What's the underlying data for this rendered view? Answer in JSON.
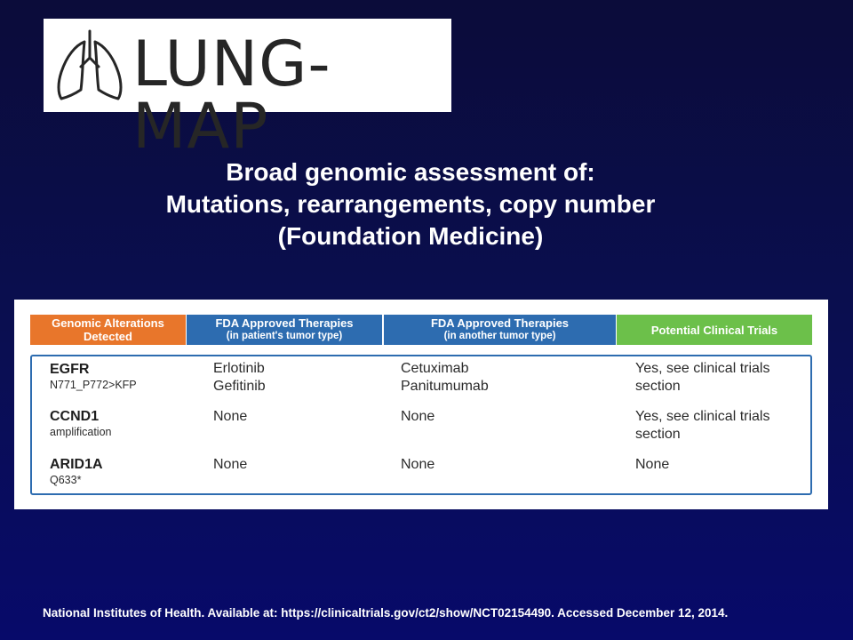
{
  "logo": {
    "text": "LUNG-MAP",
    "icon": "lungs-icon"
  },
  "title_lines": [
    "Broad genomic assessment of:",
    "Mutations, rearrangements, copy number",
    "(Foundation Medicine)"
  ],
  "table": {
    "headers": [
      {
        "main": "Genomic Alterations",
        "sub": "Detected",
        "color": "#e8762b"
      },
      {
        "main": "FDA Approved Therapies",
        "sub": "(in patient's tumor type)",
        "color": "#2d6cb0"
      },
      {
        "main": "FDA Approved Therapies",
        "sub": "(in another tumor type)",
        "color": "#2d6cb0"
      },
      {
        "main": "Potential Clinical Trials",
        "sub": "",
        "color": "#6cc04a"
      }
    ],
    "rows": [
      {
        "gene": "EGFR",
        "variant": "N771_P772>KFP",
        "patient_therapies": [
          "Erlotinib",
          "Gefitinib"
        ],
        "other_therapies": [
          "Cetuximab",
          "Panitumumab"
        ],
        "trials": [
          "Yes, see clinical trials",
          "section"
        ]
      },
      {
        "gene": "CCND1",
        "variant": "amplification",
        "patient_therapies": [
          "None"
        ],
        "other_therapies": [
          "None"
        ],
        "trials": [
          "Yes, see clinical trials",
          "section"
        ]
      },
      {
        "gene": "ARID1A",
        "variant": "Q633*",
        "patient_therapies": [
          "None"
        ],
        "other_therapies": [
          "None"
        ],
        "trials": [
          "None"
        ]
      }
    ]
  },
  "footnote": "National Institutes of Health. Available at: https://clinicaltrials.gov/ct2/show/NCT02154490. Accessed December 12, 2014."
}
